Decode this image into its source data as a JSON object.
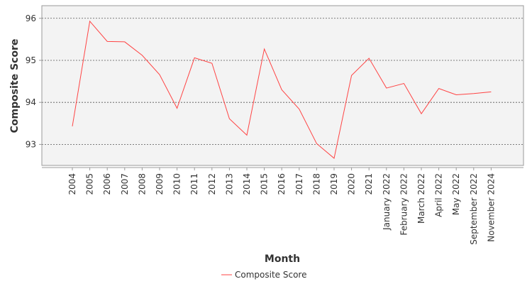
{
  "chart_data": {
    "type": "line",
    "categories": [
      "2004",
      "2005",
      "2006",
      "2007",
      "2008",
      "2009",
      "2010",
      "2011",
      "2012",
      "2013",
      "2014",
      "2015",
      "2016",
      "2017",
      "2018",
      "2019",
      "2020",
      "2021",
      "January 2022",
      "February 2022",
      "March 2022",
      "April 2022",
      "May 2022",
      "September 2022",
      "November 2024"
    ],
    "series": [
      {
        "name": "Composite Score",
        "values": [
          93.43,
          95.93,
          95.45,
          95.44,
          95.12,
          94.66,
          93.86,
          95.06,
          94.93,
          93.61,
          93.22,
          95.27,
          94.3,
          93.84,
          93.02,
          92.67,
          94.64,
          95.05,
          94.34,
          94.45,
          93.73,
          94.33,
          94.18,
          94.21,
          94.25
        ]
      }
    ],
    "xlabel": "Month",
    "ylabel": "Composite Score",
    "ylim": [
      92.5,
      96.3
    ],
    "yticks": [
      93,
      94,
      95,
      96
    ],
    "grid": true,
    "legend_position": "bottom",
    "line_color": "#ff4444",
    "plot_background": "#f3f3f3"
  }
}
